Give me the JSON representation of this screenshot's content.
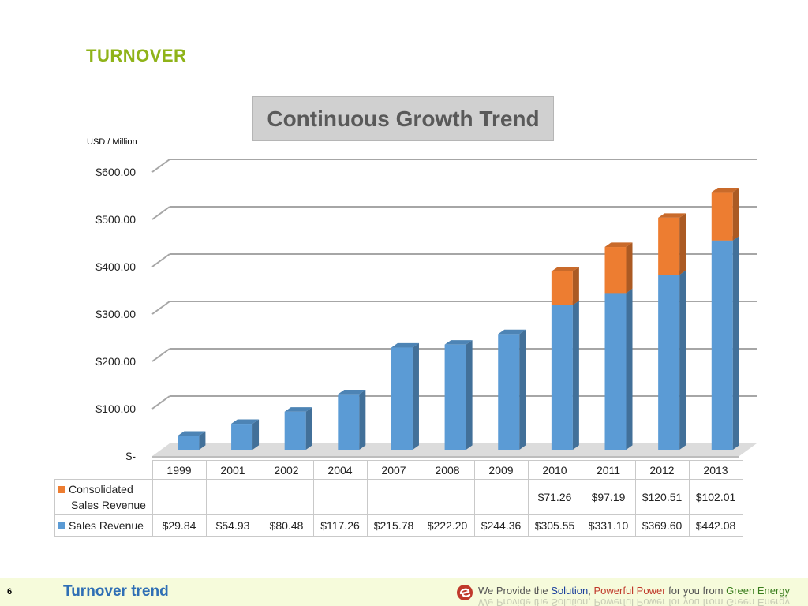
{
  "page": {
    "heading": "TURNOVER",
    "page_number": "6",
    "footer_title": "Turnover trend",
    "tagline": {
      "p1": "We Provide the ",
      "solution": "Solution",
      "comma": ", ",
      "powerful_power": "Powerful Power",
      "p2": " for you from ",
      "green_energy": "Green Energy"
    }
  },
  "chart_data": {
    "type": "bar",
    "stacked": true,
    "title": "Continuous Growth Trend",
    "ylabel": "USD / Million",
    "categories": [
      "1999",
      "2001",
      "2002",
      "2004",
      "2007",
      "2008",
      "2009",
      "2010",
      "2011",
      "2012",
      "2013"
    ],
    "series": [
      {
        "name": "Sales Revenue",
        "color": "#5b9bd5",
        "values": [
          29.84,
          54.93,
          80.48,
          117.26,
          215.78,
          222.2,
          244.36,
          305.55,
          331.1,
          369.6,
          442.08
        ],
        "labels": [
          "$29.84",
          "$54.93",
          "$80.48",
          "$117.26",
          "$215.78",
          "$222.20",
          "$244.36",
          "$305.55",
          "$331.10",
          "$369.60",
          "$442.08"
        ]
      },
      {
        "name": "Consolidated Sales Revenue",
        "name_lines": [
          "Consolidated",
          "Sales Revenue"
        ],
        "color": "#ed7d31",
        "values": [
          null,
          null,
          null,
          null,
          null,
          null,
          null,
          71.26,
          97.19,
          120.51,
          102.01
        ],
        "labels": [
          "",
          "",
          "",
          "",
          "",
          "",
          "",
          "$71.26",
          "$97.19",
          "$120.51",
          "$102.01"
        ]
      }
    ],
    "ylim": [
      0,
      600
    ],
    "yticks": [
      0,
      100,
      200,
      300,
      400,
      500,
      600
    ],
    "ytick_labels": [
      "$-",
      "$100.00",
      "$200.00",
      "$300.00",
      "$400.00",
      "$500.00",
      "$600.00"
    ],
    "grid": true,
    "legend": "data-table-below"
  }
}
